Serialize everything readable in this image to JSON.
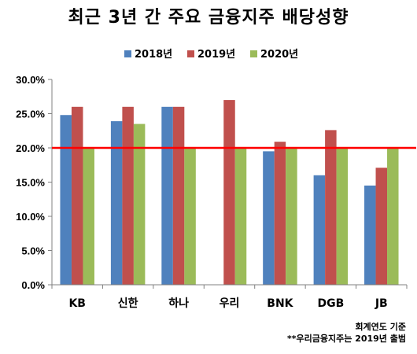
{
  "title": "최근 3년 간 주요 금융지주 배당성향",
  "notes": [
    "회계연도 기준",
    "**우리금융지주는 2019년 출범"
  ],
  "chart_data": {
    "type": "bar",
    "title": "최근 3년 간 주요 금융지주 배당성향",
    "categories": [
      "KB",
      "신한",
      "하나",
      "우리",
      "BNK",
      "DGB",
      "JB"
    ],
    "series": [
      {
        "name": "2018년",
        "color": "#4f81bd",
        "values": [
          24.8,
          23.9,
          26.0,
          null,
          19.5,
          16.0,
          14.5
        ]
      },
      {
        "name": "2019년",
        "color": "#c0504d",
        "values": [
          26.0,
          26.0,
          26.0,
          27.0,
          20.9,
          22.6,
          17.1
        ]
      },
      {
        "name": "2020년",
        "color": "#9bbb59",
        "values": [
          20.0,
          23.5,
          20.0,
          20.0,
          20.0,
          20.0,
          20.0
        ]
      }
    ],
    "ylim": [
      0,
      30
    ],
    "yticks": [
      "0.0%",
      "5.0%",
      "10.0%",
      "15.0%",
      "20.0%",
      "25.0%",
      "30.0%"
    ],
    "reference_line": {
      "value": 20,
      "color": "#ff0000"
    },
    "legend_position": "top"
  }
}
